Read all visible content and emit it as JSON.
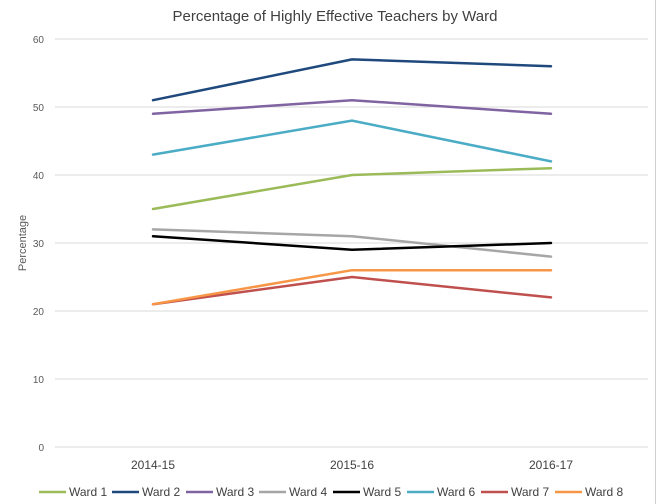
{
  "chart_data": {
    "type": "line",
    "title": "Percentage of Highly Effective Teachers by Ward",
    "xlabel": "",
    "ylabel": "Percentage",
    "categories": [
      "2014-15",
      "2015-16",
      "2016-17"
    ],
    "ylim": [
      0,
      60
    ],
    "yticks": [
      0,
      10,
      20,
      30,
      40,
      50,
      60
    ],
    "grid": true,
    "legend_position": "bottom",
    "series": [
      {
        "name": "Ward 1",
        "color": "#9bbb59",
        "values": [
          35,
          40,
          41
        ]
      },
      {
        "name": "Ward 2",
        "color": "#1f497d",
        "values": [
          51,
          57,
          56
        ]
      },
      {
        "name": "Ward 3",
        "color": "#8064a2",
        "values": [
          49,
          51,
          49
        ]
      },
      {
        "name": "Ward 4",
        "color": "#a6a6a6",
        "values": [
          32,
          31,
          28
        ]
      },
      {
        "name": "Ward 5",
        "color": "#000000",
        "values": [
          31,
          29,
          30
        ]
      },
      {
        "name": "Ward 6",
        "color": "#4bacc6",
        "values": [
          43,
          48,
          42
        ]
      },
      {
        "name": "Ward 7",
        "color": "#c0504d",
        "values": [
          21,
          25,
          22
        ]
      },
      {
        "name": "Ward 8",
        "color": "#f79646",
        "values": [
          21,
          26,
          26
        ]
      }
    ]
  }
}
